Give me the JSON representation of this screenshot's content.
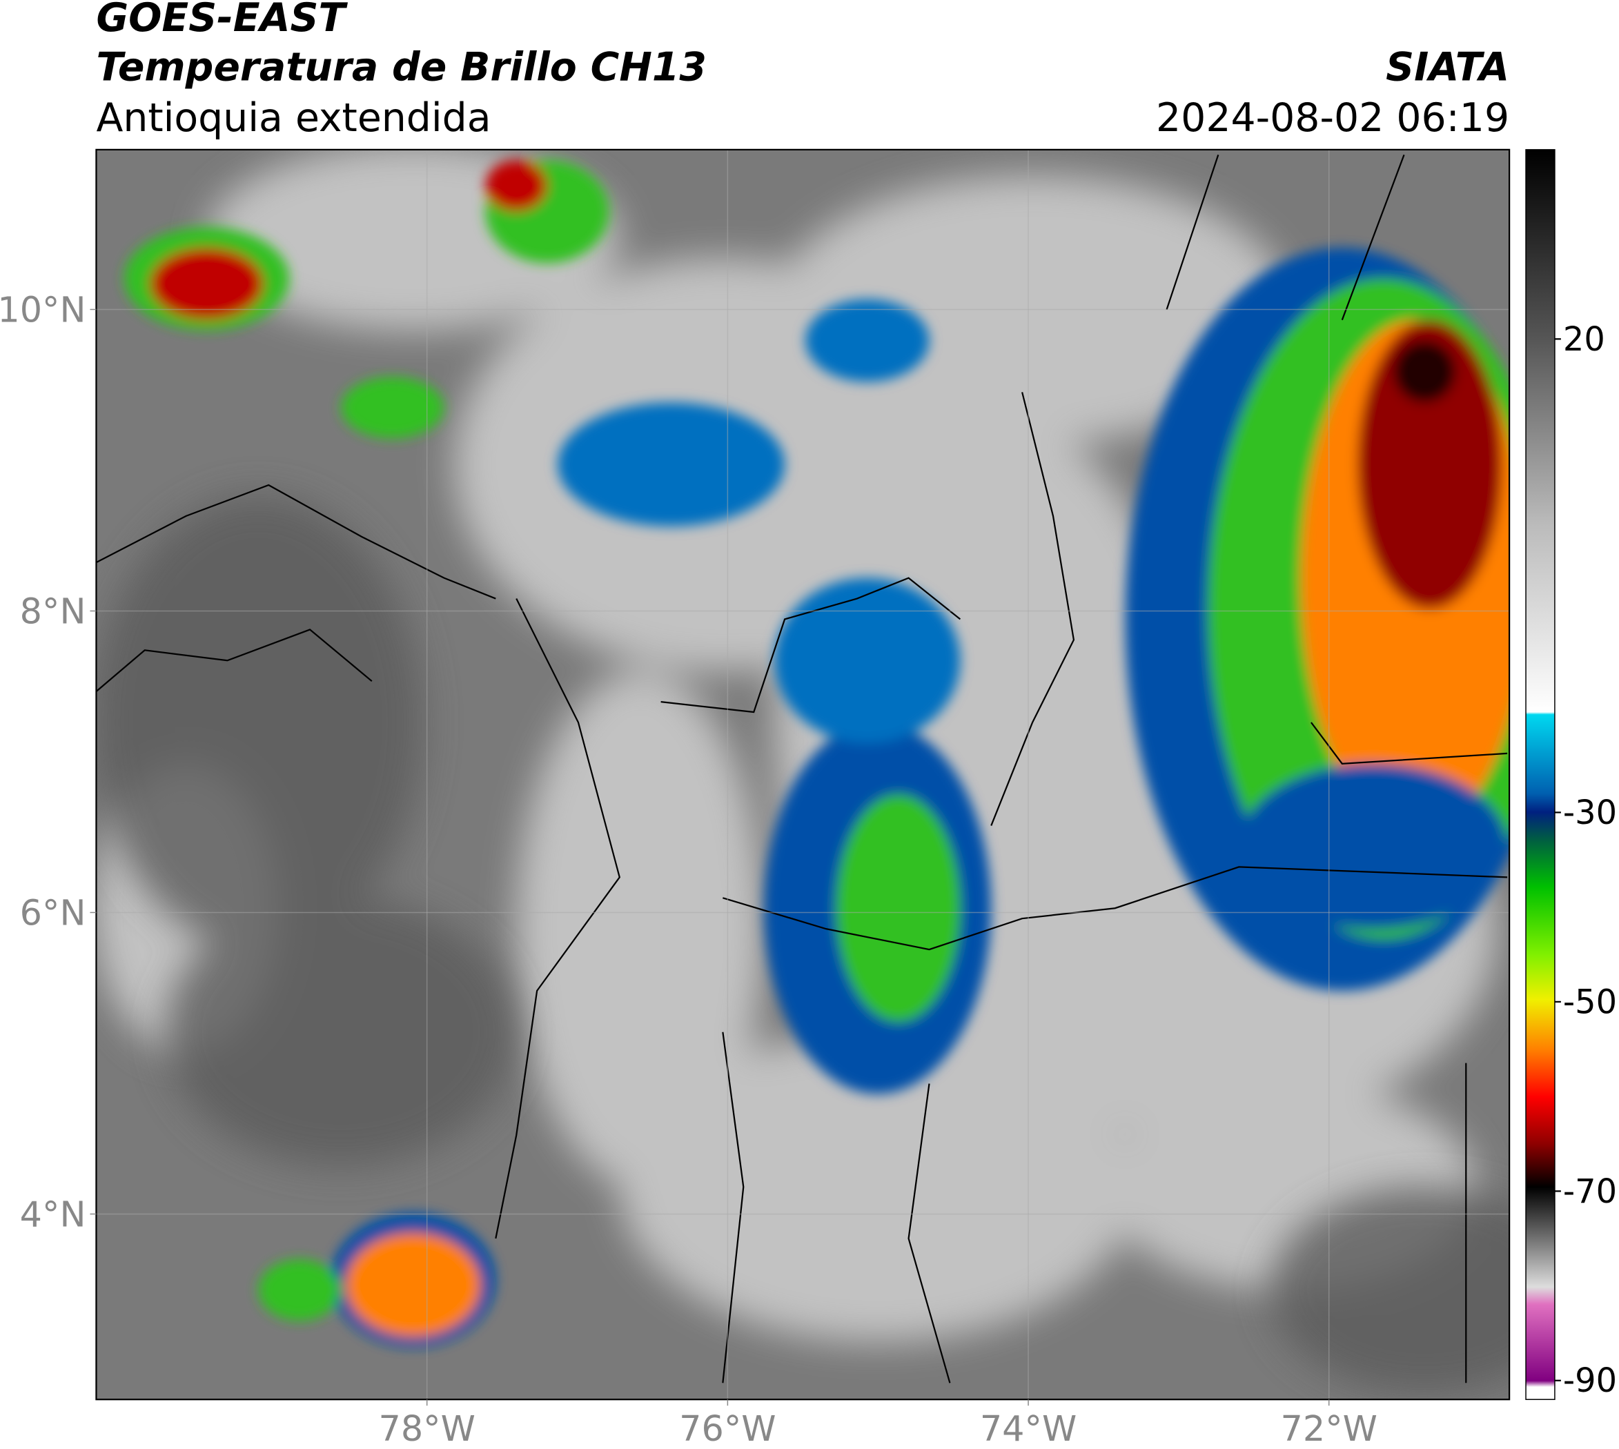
{
  "header": {
    "title": "GOES-EAST",
    "subtitle": "Temperatura de Brillo CH13",
    "region": "Antioquia extendida",
    "source": "SIATA",
    "datetime": "2024-08-02 06:19"
  },
  "map": {
    "xlim": [
      -80.2,
      -70.8
    ],
    "ylim": [
      2.77,
      11.06
    ],
    "xticks": [
      {
        "value": -78,
        "label": "78°W"
      },
      {
        "value": -76,
        "label": "76°W"
      },
      {
        "value": -74,
        "label": "74°W"
      },
      {
        "value": -72,
        "label": "72°W"
      }
    ],
    "yticks": [
      {
        "value": 4,
        "label": "4°N"
      },
      {
        "value": 6,
        "label": "6°N"
      },
      {
        "value": 8,
        "label": "8°N"
      },
      {
        "value": 10,
        "label": "10°N"
      }
    ],
    "grid": true
  },
  "colorbar": {
    "lim": [
      -92,
      40
    ],
    "ticks": [
      20,
      -30,
      -50,
      -70,
      -90
    ]
  }
}
